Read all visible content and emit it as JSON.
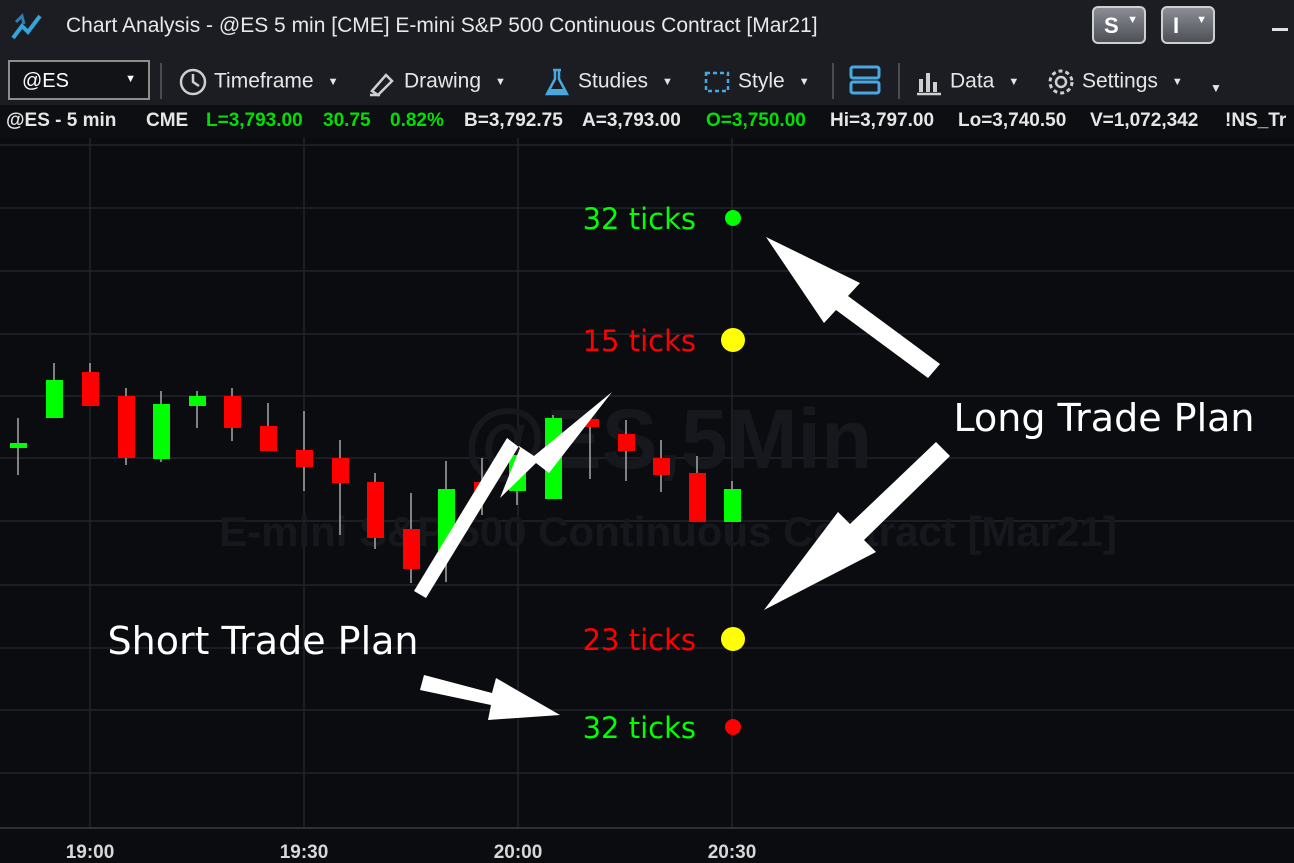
{
  "window": {
    "title": "Chart Analysis - @ES 5 min [CME] E-mini S&P 500 Continuous Contract [Mar21]",
    "buttons": [
      "S",
      "I"
    ]
  },
  "toolbar": {
    "symbol": "@ES",
    "items": [
      {
        "label": "Timeframe",
        "icon": "clock-icon"
      },
      {
        "label": "Drawing",
        "icon": "pen-icon"
      },
      {
        "label": "Studies",
        "icon": "flask-icon"
      },
      {
        "label": "Style",
        "icon": "style-icon"
      },
      {
        "label": "Data",
        "icon": "bars-icon"
      },
      {
        "label": "Settings",
        "icon": "gear-icon"
      }
    ]
  },
  "status": {
    "symbol": "@ES - 5 min",
    "exchange": "CME",
    "last": "L=3,793.00",
    "change": "30.75",
    "change_pct": "0.82%",
    "bid": "B=3,792.75",
    "ask": "A=3,793.00",
    "open": "O=3,750.00",
    "high": "Hi=3,797.00",
    "low": "Lo=3,740.50",
    "volume": "V=1,072,342",
    "extra": "!NS_Tr"
  },
  "colors": {
    "up": "#00ff00",
    "down": "#ff0000",
    "target": "#ffff00",
    "status_green": "#00e000",
    "status_white": "#e6e6e6"
  },
  "chart_data": {
    "type": "candlestick",
    "watermark": [
      "@ES,5Min",
      "E-mini S&P 500 Continuous Contract [Mar21]"
    ],
    "x_ticks": [
      "19:00",
      "19:30",
      "20:00",
      "20:30"
    ],
    "candles": [
      {
        "dir": "up"
      },
      {
        "dir": "up"
      },
      {
        "dir": "down"
      },
      {
        "dir": "down"
      },
      {
        "dir": "up"
      },
      {
        "dir": "up"
      },
      {
        "dir": "down"
      },
      {
        "dir": "down"
      },
      {
        "dir": "down"
      },
      {
        "dir": "down"
      },
      {
        "dir": "down"
      },
      {
        "dir": "down"
      },
      {
        "dir": "up"
      },
      {
        "dir": "down"
      },
      {
        "dir": "up"
      },
      {
        "dir": "up"
      },
      {
        "dir": "down"
      },
      {
        "dir": "down"
      },
      {
        "dir": "down"
      },
      {
        "dir": "down"
      },
      {
        "dir": "up"
      }
    ],
    "levels": [
      {
        "label": "32 ticks",
        "label_color": "#00ff00",
        "dot_color": "#00ff00"
      },
      {
        "label": "15 ticks",
        "label_color": "#ff0000",
        "dot_color": "#ffff00"
      },
      {
        "label": "23 ticks",
        "label_color": "#ff0000",
        "dot_color": "#ffff00"
      },
      {
        "label": "32 ticks",
        "label_color": "#00ff00",
        "dot_color": "#ff0000"
      }
    ],
    "annotations": [
      "Long Trade Plan",
      "Short Trade Plan"
    ]
  }
}
